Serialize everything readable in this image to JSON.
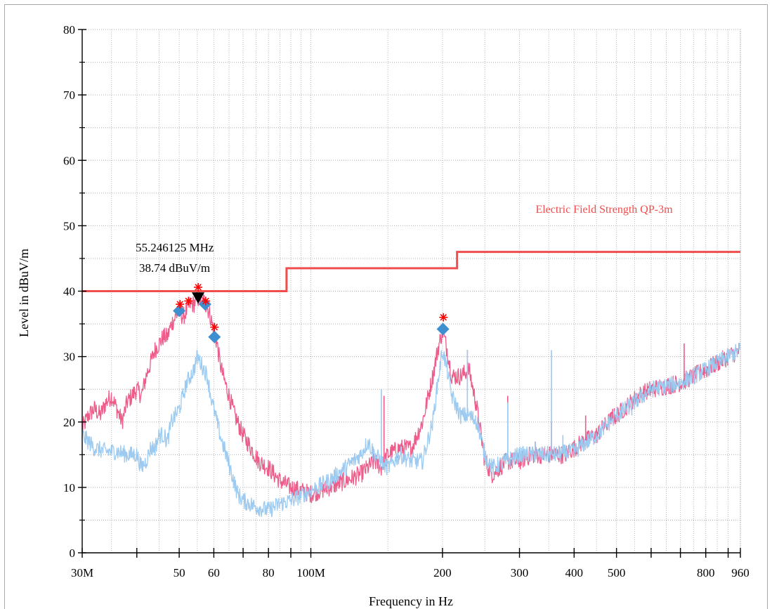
{
  "chart_data": {
    "type": "line",
    "xlabel": "Frequency in Hz",
    "ylabel": "Level in dBuV/m",
    "xscale": "log",
    "xlim": [
      30,
      960
    ],
    "ylim": [
      0,
      80
    ],
    "grid": true,
    "x_tick_values": [
      30,
      50,
      60,
      80,
      100,
      200,
      300,
      400,
      500,
      800,
      960
    ],
    "x_tick_labels": [
      "30M",
      "50",
      "60",
      "80",
      "100M",
      "200",
      "300",
      "400",
      "500",
      "800",
      "960"
    ],
    "x_minor_ticks": [
      40,
      70,
      90,
      600,
      700,
      900
    ],
    "y_tick_values": [
      0,
      10,
      20,
      30,
      40,
      50,
      60,
      70,
      80
    ],
    "y_tick_labels": [
      "0",
      "10",
      "20",
      "30",
      "40",
      "50",
      "60",
      "70",
      "80"
    ],
    "colors": {
      "peak_trace": "#ee5c8a",
      "qp_trace": "#9ccaf0",
      "limit": "#f04d4d",
      "marker_star": "#ff0000",
      "marker_diamond": "#3d8fd0",
      "marker_triangle": "#000000"
    },
    "limit_line": {
      "name": "Electric Field Strength QP-3m",
      "points": [
        [
          30,
          40
        ],
        [
          88,
          40
        ],
        [
          88,
          43.5
        ],
        [
          216,
          43.5
        ],
        [
          216,
          46
        ],
        [
          960,
          46
        ]
      ]
    },
    "series": [
      {
        "id": "peak",
        "points": [
          [
            30,
            19
          ],
          [
            31,
            21
          ],
          [
            32,
            22
          ],
          [
            33,
            21
          ],
          [
            34,
            23
          ],
          [
            35,
            24
          ],
          [
            36,
            22
          ],
          [
            37,
            20
          ],
          [
            38,
            23
          ],
          [
            40,
            25
          ],
          [
            41,
            24
          ],
          [
            42,
            27
          ],
          [
            43,
            29
          ],
          [
            44,
            31
          ],
          [
            45,
            32
          ],
          [
            46,
            33
          ],
          [
            47,
            33
          ],
          [
            48,
            35
          ],
          [
            49,
            36
          ],
          [
            50,
            37
          ],
          [
            51,
            36
          ],
          [
            52,
            37
          ],
          [
            53,
            38
          ],
          [
            54,
            38
          ],
          [
            55,
            39
          ],
          [
            56,
            38.5
          ],
          [
            57,
            38.5
          ],
          [
            58,
            37.5
          ],
          [
            59,
            36
          ],
          [
            60,
            34
          ],
          [
            61,
            32
          ],
          [
            62,
            29
          ],
          [
            63,
            27
          ],
          [
            65,
            24
          ],
          [
            67,
            21
          ],
          [
            70,
            18
          ],
          [
            73,
            16
          ],
          [
            76,
            14
          ],
          [
            80,
            13
          ],
          [
            85,
            11
          ],
          [
            90,
            10
          ],
          [
            95,
            9.5
          ],
          [
            100,
            9
          ],
          [
            110,
            10
          ],
          [
            120,
            11
          ],
          [
            130,
            12
          ],
          [
            140,
            14
          ],
          [
            145,
            13
          ],
          [
            150,
            15
          ],
          [
            160,
            16
          ],
          [
            170,
            16
          ],
          [
            180,
            20
          ],
          [
            190,
            27
          ],
          [
            195,
            31
          ],
          [
            200,
            34
          ],
          [
            205,
            31
          ],
          [
            210,
            27
          ],
          [
            220,
            27
          ],
          [
            230,
            28
          ],
          [
            240,
            22
          ],
          [
            250,
            14
          ],
          [
            260,
            12
          ],
          [
            270,
            13
          ],
          [
            280,
            14
          ],
          [
            300,
            14
          ],
          [
            320,
            15
          ],
          [
            350,
            15
          ],
          [
            380,
            15
          ],
          [
            400,
            16
          ],
          [
            420,
            17
          ],
          [
            450,
            18
          ],
          [
            480,
            20
          ],
          [
            520,
            22
          ],
          [
            560,
            24
          ],
          [
            600,
            25
          ],
          [
            650,
            25.5
          ],
          [
            700,
            26
          ],
          [
            750,
            27
          ],
          [
            800,
            28
          ],
          [
            850,
            29
          ],
          [
            900,
            30
          ],
          [
            960,
            31
          ]
        ]
      },
      {
        "id": "qp",
        "points": [
          [
            30,
            18
          ],
          [
            31,
            17
          ],
          [
            32,
            16
          ],
          [
            34,
            15.5
          ],
          [
            36,
            15.5
          ],
          [
            38,
            15
          ],
          [
            40,
            15
          ],
          [
            41,
            13
          ],
          [
            42,
            14
          ],
          [
            43,
            16
          ],
          [
            44,
            16
          ],
          [
            45,
            18
          ],
          [
            46,
            18
          ],
          [
            47,
            17
          ],
          [
            48,
            20
          ],
          [
            49,
            21
          ],
          [
            50,
            22
          ],
          [
            51,
            24
          ],
          [
            52,
            26
          ],
          [
            53,
            27
          ],
          [
            54,
            28
          ],
          [
            55,
            30
          ],
          [
            56,
            29
          ],
          [
            57,
            28
          ],
          [
            58,
            27
          ],
          [
            59,
            24
          ],
          [
            60,
            22
          ],
          [
            62,
            18
          ],
          [
            64,
            15
          ],
          [
            66,
            12
          ],
          [
            68,
            9
          ],
          [
            70,
            8
          ],
          [
            75,
            7
          ],
          [
            80,
            6.5
          ],
          [
            85,
            7.5
          ],
          [
            90,
            8
          ],
          [
            100,
            9.5
          ],
          [
            110,
            11
          ],
          [
            120,
            13
          ],
          [
            130,
            15
          ],
          [
            135,
            17
          ],
          [
            140,
            15
          ],
          [
            150,
            13
          ],
          [
            160,
            15
          ],
          [
            170,
            14
          ],
          [
            180,
            14
          ],
          [
            190,
            20
          ],
          [
            195,
            26
          ],
          [
            200,
            31
          ],
          [
            205,
            28
          ],
          [
            210,
            24
          ],
          [
            220,
            21
          ],
          [
            230,
            21
          ],
          [
            240,
            20
          ],
          [
            250,
            15
          ],
          [
            260,
            13
          ],
          [
            280,
            14
          ],
          [
            300,
            15
          ],
          [
            330,
            15
          ],
          [
            360,
            15
          ],
          [
            400,
            15.5
          ],
          [
            450,
            18
          ],
          [
            500,
            21
          ],
          [
            550,
            23
          ],
          [
            600,
            25
          ],
          [
            650,
            25.5
          ],
          [
            700,
            26
          ],
          [
            750,
            27
          ],
          [
            800,
            28
          ],
          [
            850,
            29
          ],
          [
            900,
            30
          ],
          [
            960,
            31
          ]
        ]
      }
    ],
    "spikes": [
      {
        "series": "peak",
        "x": 147,
        "y": 24
      },
      {
        "series": "peak",
        "x": 228,
        "y": 31
      },
      {
        "series": "peak",
        "x": 238,
        "y": 22
      },
      {
        "series": "peak",
        "x": 282,
        "y": 24
      },
      {
        "series": "peak",
        "x": 326,
        "y": 17
      },
      {
        "series": "peak",
        "x": 355,
        "y": 20
      },
      {
        "series": "peak",
        "x": 425,
        "y": 21
      },
      {
        "series": "peak",
        "x": 490,
        "y": 22
      },
      {
        "series": "peak",
        "x": 714,
        "y": 32
      },
      {
        "series": "peak",
        "x": 748,
        "y": 27
      },
      {
        "series": "qp",
        "x": 145,
        "y": 25
      },
      {
        "series": "qp",
        "x": 228,
        "y": 31
      },
      {
        "series": "qp",
        "x": 238,
        "y": 21
      },
      {
        "series": "qp",
        "x": 282,
        "y": 23
      },
      {
        "series": "qp",
        "x": 326,
        "y": 17
      },
      {
        "series": "qp",
        "x": 355,
        "y": 31
      },
      {
        "series": "qp",
        "x": 377,
        "y": 18
      },
      {
        "series": "qp",
        "x": 542,
        "y": 21
      }
    ],
    "peak_markers": [
      {
        "x": 50.2,
        "y": 38
      },
      {
        "x": 52.5,
        "y": 38.5
      },
      {
        "x": 55.25,
        "y": 40.6
      },
      {
        "x": 57.5,
        "y": 38.5
      },
      {
        "x": 60.2,
        "y": 34.5
      },
      {
        "x": 201,
        "y": 36
      }
    ],
    "qp_markers": [
      {
        "x": 50,
        "y": 37
      },
      {
        "x": 57.3,
        "y": 38
      },
      {
        "x": 60.2,
        "y": 33
      },
      {
        "x": 200.5,
        "y": 34.2
      }
    ],
    "max_marker": {
      "x": 55.246125,
      "y": 38.74,
      "label_freq": "55.246125 MHz",
      "label_level": "38.74 dBuV/m"
    }
  }
}
